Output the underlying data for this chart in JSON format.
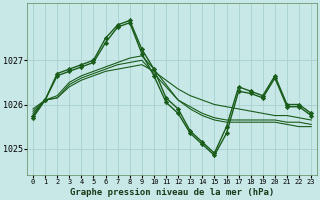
{
  "title": "Graphe pression niveau de la mer (hPa)",
  "background_color": "#c8e8e8",
  "grid_color": "#aacfcf",
  "line_color": "#1a5c1a",
  "marker_color": "#1a5c1a",
  "xlim": [
    -0.5,
    23.5
  ],
  "ylim": [
    1024.4,
    1028.3
  ],
  "yticks": [
    1025,
    1026,
    1027
  ],
  "series": [
    {
      "x": [
        0,
        1,
        2,
        3,
        4,
        5,
        6,
        7,
        8,
        9,
        10,
        11,
        12,
        13,
        14,
        15,
        16,
        17,
        18,
        19,
        20,
        21,
        22,
        23
      ],
      "y": [
        1025.9,
        1026.1,
        1026.15,
        1026.4,
        1026.55,
        1026.65,
        1026.75,
        1026.8,
        1026.85,
        1026.9,
        1026.75,
        1026.55,
        1026.35,
        1026.2,
        1026.1,
        1026.0,
        1025.95,
        1025.9,
        1025.85,
        1025.8,
        1025.75,
        1025.75,
        1025.7,
        1025.65
      ],
      "marker": false,
      "lw": 0.8
    },
    {
      "x": [
        0,
        1,
        2,
        3,
        4,
        5,
        6,
        7,
        8,
        9,
        10,
        11,
        12,
        13,
        14,
        15,
        16,
        17,
        18,
        19,
        20,
        21,
        22,
        23
      ],
      "y": [
        1025.85,
        1026.1,
        1026.15,
        1026.45,
        1026.6,
        1026.7,
        1026.8,
        1026.9,
        1026.95,
        1027.0,
        1026.7,
        1026.4,
        1026.1,
        1025.95,
        1025.8,
        1025.7,
        1025.65,
        1025.65,
        1025.65,
        1025.65,
        1025.65,
        1025.6,
        1025.6,
        1025.55
      ],
      "marker": false,
      "lw": 0.8
    },
    {
      "x": [
        0,
        1,
        2,
        3,
        4,
        5,
        6,
        7,
        8,
        9,
        10,
        11,
        12,
        13,
        14,
        15,
        16,
        17,
        18,
        19,
        20,
        21,
        22,
        23
      ],
      "y": [
        1025.8,
        1026.1,
        1026.2,
        1026.5,
        1026.65,
        1026.75,
        1026.85,
        1026.95,
        1027.05,
        1027.1,
        1026.8,
        1026.45,
        1026.1,
        1025.9,
        1025.75,
        1025.65,
        1025.6,
        1025.6,
        1025.6,
        1025.6,
        1025.6,
        1025.55,
        1025.5,
        1025.5
      ],
      "marker": false,
      "lw": 0.8
    },
    {
      "x": [
        0,
        1,
        2,
        3,
        4,
        5,
        6,
        7,
        8,
        9,
        10,
        11,
        12,
        13,
        14,
        15,
        16,
        17,
        18,
        19,
        20,
        21,
        22,
        23
      ],
      "y": [
        1025.7,
        1026.1,
        1026.65,
        1026.75,
        1026.85,
        1026.95,
        1027.4,
        1027.75,
        1027.85,
        1027.15,
        1026.65,
        1026.05,
        1025.8,
        1025.35,
        1025.1,
        1024.85,
        1025.35,
        1026.3,
        1026.25,
        1026.15,
        1026.6,
        1025.95,
        1025.95,
        1025.75
      ],
      "marker": true,
      "lw": 1.0
    },
    {
      "x": [
        0,
        1,
        2,
        3,
        4,
        5,
        6,
        7,
        8,
        9,
        10,
        11,
        12,
        13,
        14,
        15,
        16,
        17,
        18,
        19,
        20,
        21,
        22,
        23
      ],
      "y": [
        1025.75,
        1026.1,
        1026.7,
        1026.8,
        1026.9,
        1027.0,
        1027.5,
        1027.8,
        1027.9,
        1027.25,
        1026.8,
        1026.15,
        1025.9,
        1025.4,
        1025.15,
        1024.9,
        1025.5,
        1026.4,
        1026.3,
        1026.2,
        1026.65,
        1026.0,
        1026.0,
        1025.8
      ],
      "marker": true,
      "lw": 1.0
    }
  ]
}
